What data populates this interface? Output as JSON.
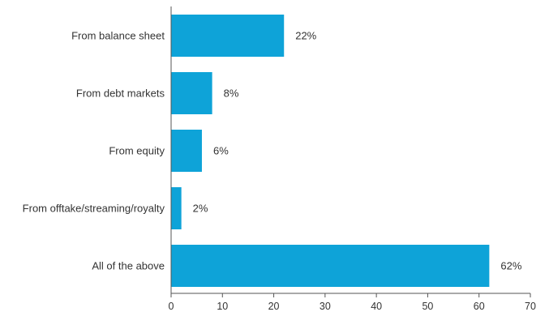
{
  "chart_data": {
    "type": "bar",
    "orientation": "horizontal",
    "title": "",
    "xlabel": "",
    "ylabel": "",
    "categories": [
      "From balance sheet",
      "From debt markets",
      "From equity",
      "From offtake/streaming/royalty",
      "All of the above"
    ],
    "values": [
      22,
      8,
      6,
      2,
      62
    ],
    "value_labels": [
      "22%",
      "8%",
      "6%",
      "2%",
      "62%"
    ],
    "xlim": [
      0,
      70
    ],
    "x_ticks": [
      0,
      10,
      20,
      30,
      40,
      50,
      60,
      70
    ],
    "x_tick_labels": [
      "0",
      "10",
      "20",
      "30",
      "40",
      "50",
      "60",
      "70"
    ],
    "grid": false,
    "legend": "none",
    "colors": {
      "bar": "#0ea3d8",
      "axis": "#555555",
      "text": "#333333"
    }
  }
}
